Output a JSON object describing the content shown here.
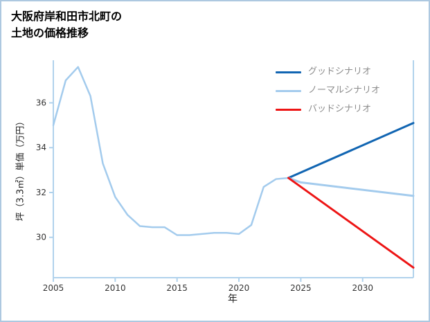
{
  "title": {
    "line1": "大阪府岸和田市北町の",
    "line2": "土地の価格推移"
  },
  "chart_data": {
    "type": "line",
    "title": "大阪府岸和田市北町の土地の価格推移",
    "xlabel": "年",
    "ylabel": "坪（3.3㎡）単価（万円）",
    "xlim": [
      2005,
      2034.1
    ],
    "ylim": [
      28.2,
      37.9
    ],
    "x_ticks": [
      2005,
      2010,
      2015,
      2020,
      2025,
      2030
    ],
    "y_ticks": [
      30,
      32,
      34,
      36
    ],
    "grid": false,
    "legend_position": "top-right-inside",
    "series": [
      {
        "name": "",
        "color": "#a3cbed",
        "width": 2.5,
        "x": [
          2005,
          2006,
          2007,
          2008,
          2009,
          2010,
          2011,
          2012,
          2013,
          2014,
          2015,
          2016,
          2017,
          2018,
          2019,
          2020,
          2021,
          2022,
          2023,
          2024
        ],
        "y": [
          35.0,
          37.0,
          37.6,
          36.3,
          33.3,
          31.8,
          31.0,
          30.5,
          30.45,
          30.45,
          30.1,
          30.1,
          30.15,
          30.2,
          30.2,
          30.15,
          30.55,
          32.25,
          32.6,
          32.65
        ]
      },
      {
        "name": "グッドシナリオ",
        "color": "#1165b2",
        "width": 3,
        "x": [
          2024,
          2034.1
        ],
        "y": [
          32.65,
          35.1
        ]
      },
      {
        "name": "ノーマルシナリオ",
        "color": "#a3cbed",
        "width": 3,
        "x": [
          2024,
          2025,
          2034.1
        ],
        "y": [
          32.65,
          32.45,
          31.85
        ]
      },
      {
        "name": "バッドシナリオ",
        "color": "#ed1515",
        "width": 3,
        "x": [
          2024,
          2034.1
        ],
        "y": [
          32.65,
          28.65
        ]
      }
    ],
    "legend": [
      {
        "label": "グッドシナリオ",
        "color": "#1165b2"
      },
      {
        "label": "ノーマルシナリオ",
        "color": "#a3cbed"
      },
      {
        "label": "バッドシナリオ",
        "color": "#ed1515"
      }
    ]
  },
  "colors": {
    "axis": "#b0d2ec",
    "border": "#adc8e0",
    "tick_label": "#333333",
    "legend_text": "#8c8c8c"
  }
}
